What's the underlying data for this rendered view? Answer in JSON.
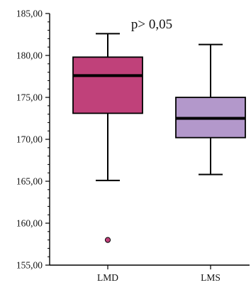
{
  "chart_data": {
    "type": "boxplot",
    "annotation": "p> 0,05",
    "ylim": [
      155,
      185
    ],
    "y_ticks": [
      {
        "value": 185,
        "label": "185,00"
      },
      {
        "value": 180,
        "label": "180,00"
      },
      {
        "value": 175,
        "label": "175,00"
      },
      {
        "value": 170,
        "label": "170,00"
      },
      {
        "value": 165,
        "label": "165,00"
      },
      {
        "value": 160,
        "label": "160,00"
      },
      {
        "value": 155,
        "label": "155,00"
      }
    ],
    "minor_ticks": true,
    "grid": false,
    "categories": [
      "LMD",
      "LMS"
    ],
    "boxes": [
      {
        "category": "LMD",
        "whisker_low": 165.1,
        "q1": 173.1,
        "median": 177.6,
        "q3": 179.8,
        "whisker_high": 182.6,
        "outliers": [
          158.0
        ],
        "color": "#c0417a"
      },
      {
        "category": "LMS",
        "whisker_low": 165.8,
        "q1": 170.2,
        "median": 172.5,
        "q3": 175.0,
        "whisker_high": 181.3,
        "outliers": [],
        "color": "#b398cb"
      }
    ]
  }
}
